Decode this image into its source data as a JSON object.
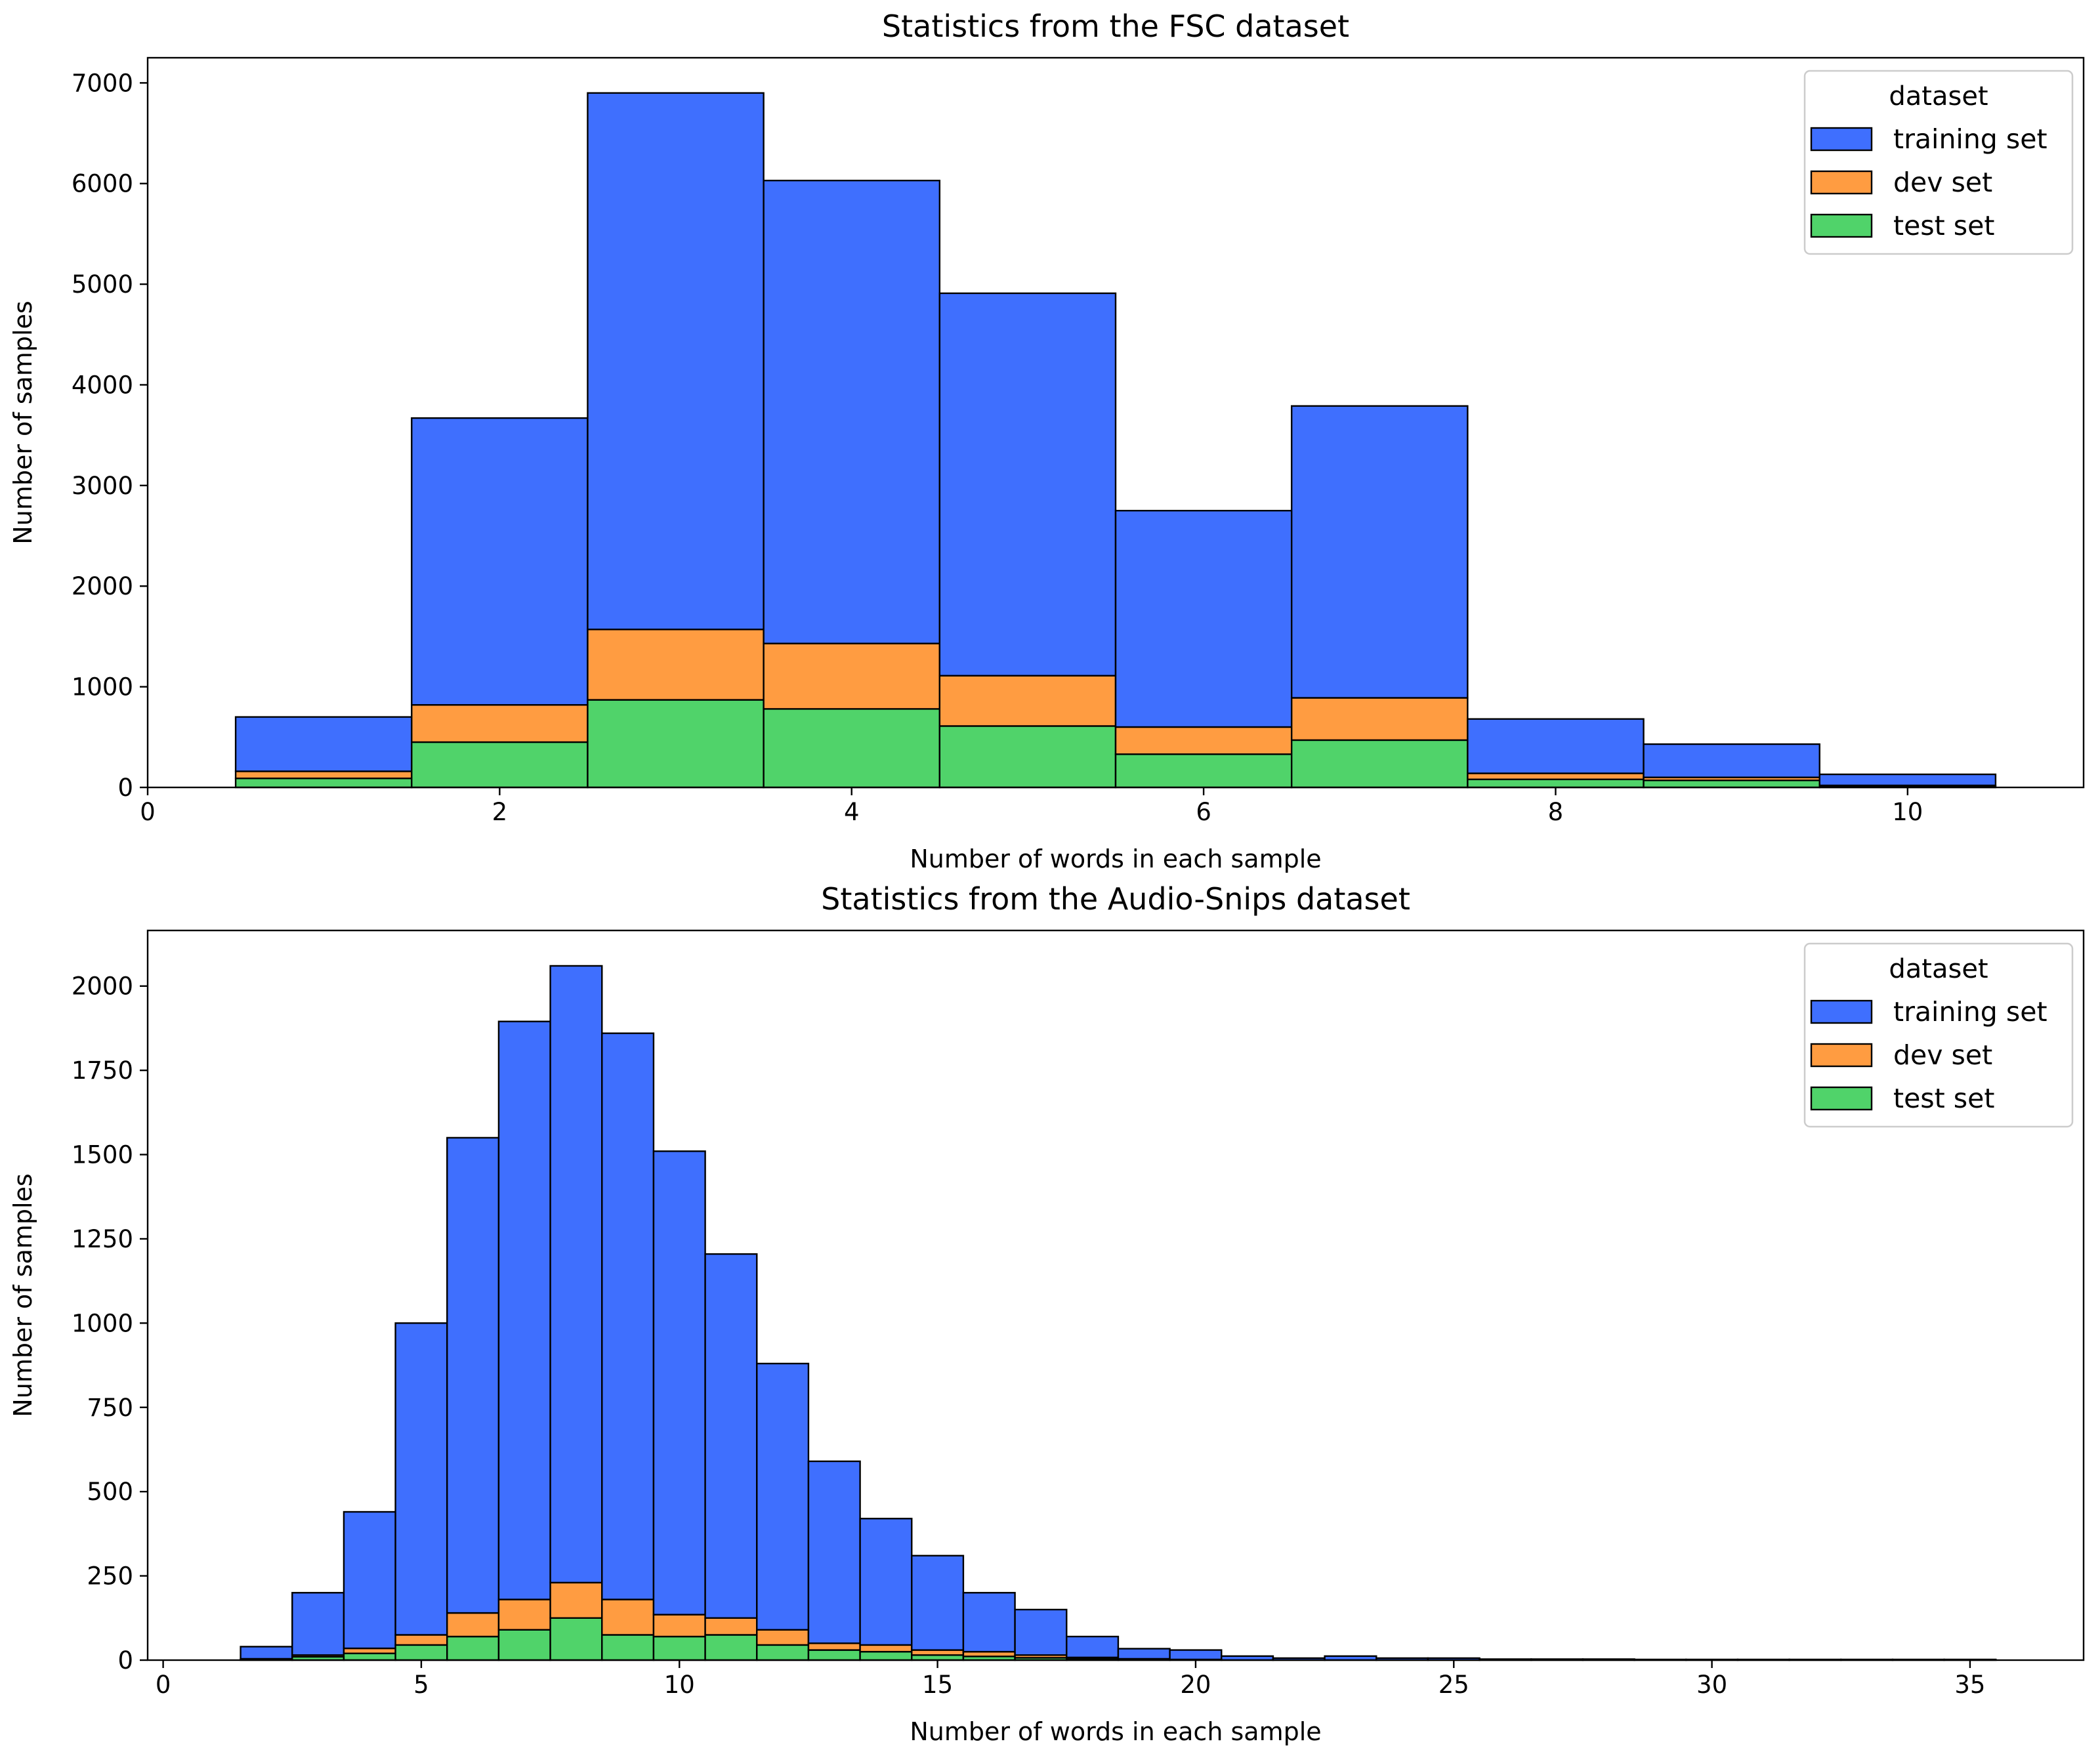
{
  "colors": {
    "training set": "#3f6ffe",
    "dev set": "#ff9c41",
    "test set": "#50d36a"
  },
  "chart_data": [
    {
      "type": "histogram",
      "stacking": "stacked",
      "title": "Statistics from the FSC dataset",
      "xlabel": "Number of words in each sample",
      "ylabel": "Number of samples",
      "xlim": [
        0,
        11
      ],
      "ylim": [
        0,
        7250
      ],
      "xticks": [
        0,
        2,
        4,
        6,
        8,
        10
      ],
      "yticks": [
        0,
        1000,
        2000,
        3000,
        4000,
        5000,
        6000,
        7000
      ],
      "bin_width": 1,
      "bins": [
        1,
        2,
        3,
        4,
        5,
        6,
        7,
        8,
        9,
        10
      ],
      "legend": {
        "title": "dataset",
        "location": "upper right"
      },
      "series": [
        {
          "name": "training set",
          "values": [
            540,
            2850,
            5330,
            4600,
            3800,
            2150,
            2900,
            540,
            330,
            110
          ]
        },
        {
          "name": "dev set",
          "values": [
            70,
            370,
            700,
            650,
            500,
            270,
            420,
            60,
            30,
            10
          ]
        },
        {
          "name": "test set",
          "values": [
            90,
            450,
            870,
            780,
            610,
            330,
            470,
            80,
            70,
            10
          ]
        }
      ]
    },
    {
      "type": "histogram",
      "stacking": "stacked",
      "title": "Statistics from the Audio-Snips dataset",
      "xlabel": "Number of words in each sample",
      "ylabel": "Number of samples",
      "xlim": [
        -0.3,
        37.2
      ],
      "ylim": [
        0,
        2165
      ],
      "xticks": [
        0,
        5,
        10,
        15,
        20,
        25,
        30,
        35
      ],
      "yticks": [
        0,
        250,
        500,
        750,
        1000,
        1250,
        1500,
        1750,
        2000
      ],
      "bin_width": 1,
      "bins": [
        2,
        3,
        4,
        5,
        6,
        7,
        8,
        9,
        10,
        11,
        12,
        13,
        14,
        15,
        16,
        17,
        18,
        19,
        20,
        21,
        22,
        23,
        24,
        25,
        26,
        27,
        28,
        29,
        30,
        31,
        32,
        33,
        34,
        35
      ],
      "legend": {
        "title": "dataset",
        "location": "upper right"
      },
      "series": [
        {
          "name": "training set",
          "values": [
            36,
            185,
            405,
            925,
            1410,
            1715,
            1830,
            1680,
            1375,
            1080,
            790,
            540,
            375,
            280,
            175,
            135,
            62,
            30,
            28,
            12,
            6,
            12,
            6,
            6,
            3,
            3,
            3,
            2,
            2,
            2,
            2,
            2,
            2,
            2
          ]
        },
        {
          "name": "dev set",
          "values": [
            2,
            5,
            15,
            30,
            70,
            90,
            105,
            105,
            65,
            50,
            45,
            20,
            20,
            15,
            14,
            8,
            3,
            2,
            1,
            0,
            0,
            0,
            0,
            0,
            0,
            0,
            0,
            0,
            0,
            0,
            0,
            0,
            0,
            0
          ]
        },
        {
          "name": "test set",
          "values": [
            2,
            10,
            20,
            45,
            70,
            90,
            125,
            75,
            70,
            75,
            45,
            30,
            25,
            15,
            11,
            7,
            5,
            2,
            1,
            0,
            0,
            0,
            0,
            0,
            0,
            0,
            0,
            0,
            0,
            0,
            0,
            0,
            0,
            0
          ]
        }
      ]
    }
  ]
}
